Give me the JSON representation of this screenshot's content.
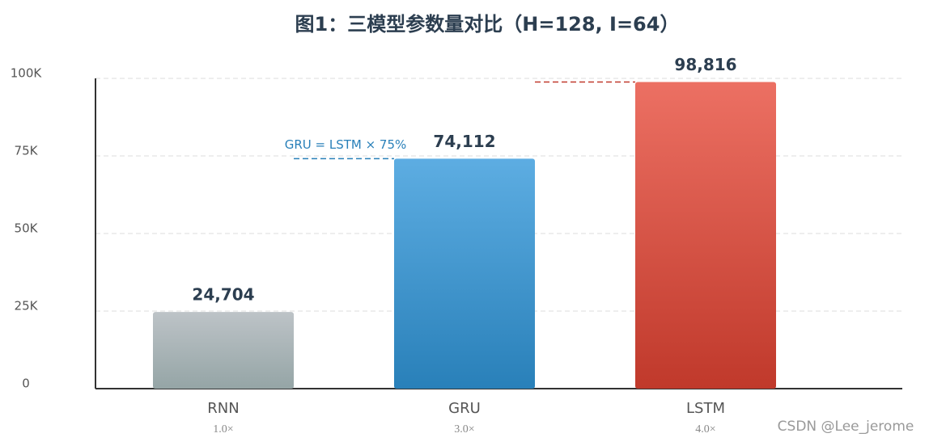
{
  "chart_data": {
    "type": "bar",
    "title": "图1：三模型参数量对比（H=128, I=64）",
    "categories": [
      "RNN",
      "GRU",
      "LSTM"
    ],
    "category_sublabels": [
      "1.0×",
      "3.0×",
      "4.0×"
    ],
    "values": [
      24704,
      74112,
      98816
    ],
    "value_labels": [
      "24,704",
      "74,112",
      "98,816"
    ],
    "colors": [
      [
        "#bdc3c7",
        "#95a5a6"
      ],
      [
        "#5dade2",
        "#2980b9"
      ],
      [
        "#ec7063",
        "#c0392b"
      ]
    ],
    "ylim": [
      0,
      100000
    ],
    "yticks": [
      0,
      {
        "value": 25000,
        "label": "25K"
      },
      {
        "value": 50000,
        "label": "50K"
      },
      {
        "value": 75000,
        "label": "75K"
      },
      {
        "value": 100000,
        "label": "100K"
      }
    ],
    "grid": true,
    "annotation": "GRU = LSTM × 75%",
    "watermark": "CSDN @Lee_jerome"
  }
}
